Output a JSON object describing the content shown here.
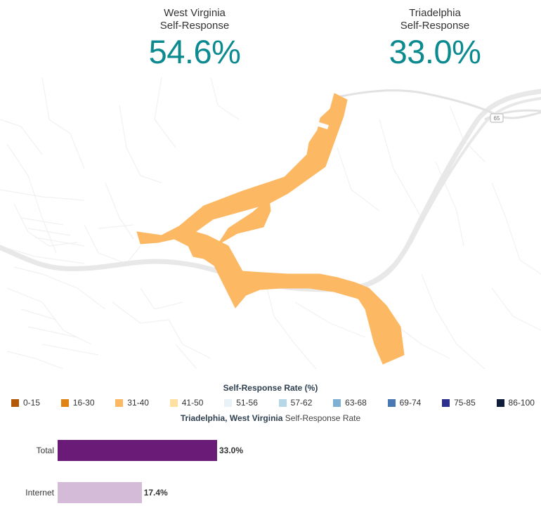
{
  "stats": {
    "state": {
      "name": "West Virginia",
      "label": "Self-Response",
      "value": "54.6%"
    },
    "place": {
      "name": "Triadelphia",
      "label": "Self-Response",
      "value": "33.0%"
    }
  },
  "map": {
    "highway_shield": "65",
    "region_fill_color": "#fdb863",
    "road_color": "#eeeeee"
  },
  "legend": {
    "title": "Self-Response Rate (%)",
    "items": [
      {
        "label": "0-15",
        "color": "#b35806"
      },
      {
        "label": "16-30",
        "color": "#e08214"
      },
      {
        "label": "31-40",
        "color": "#fdb863"
      },
      {
        "label": "41-50",
        "color": "#fee0a0"
      },
      {
        "label": "51-56",
        "color": "#e8f2f7"
      },
      {
        "label": "57-62",
        "color": "#b6d7e8"
      },
      {
        "label": "63-68",
        "color": "#7db0d2"
      },
      {
        "label": "69-74",
        "color": "#4a78b5"
      },
      {
        "label": "75-85",
        "color": "#2d2f8c"
      },
      {
        "label": "86-100",
        "color": "#0f1d3a"
      }
    ]
  },
  "bar_chart": {
    "place_bold": "Triadelphia, West Virginia",
    "title_rest": " Self-Response Rate",
    "bars": [
      {
        "label": "Total",
        "value": 33.0,
        "display": "33.0%",
        "color": "#6a1b78"
      },
      {
        "label": "Internet",
        "value": 17.4,
        "display": "17.4%",
        "color": "#d4bcd8"
      }
    ]
  }
}
